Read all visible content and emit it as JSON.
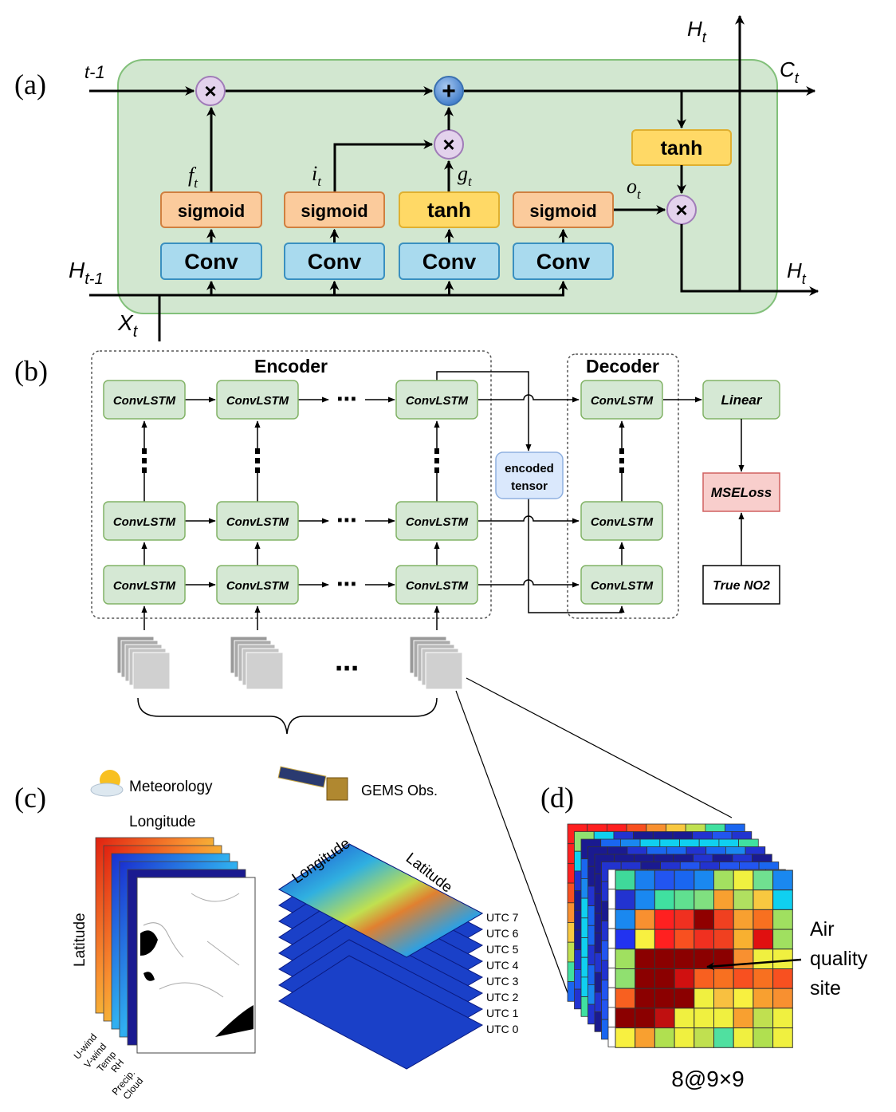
{
  "panel_a": {
    "label": "(a)",
    "c_prev": "t-1",
    "c_out": "C",
    "c_out_sub": "t",
    "h_top": "H",
    "h_top_sub": "t",
    "h_out": "H",
    "h_out_sub": "t",
    "h_prev": "H",
    "h_prev_sub": "t-1",
    "x_in": "X",
    "x_in_sub": "t",
    "gates": [
      {
        "act": "sigmoid",
        "conv": "Conv",
        "symbol": "f",
        "sub": "t"
      },
      {
        "act": "sigmoid",
        "conv": "Conv",
        "symbol": "i",
        "sub": "t"
      },
      {
        "act": "tanh",
        "conv": "Conv",
        "symbol": "g",
        "sub": "t"
      },
      {
        "act": "sigmoid",
        "conv": "Conv",
        "symbol": "o",
        "sub": "t"
      }
    ],
    "tanh_out": "tanh",
    "multiply_symbol": "×",
    "add_symbol": "+"
  },
  "panel_b": {
    "label": "(b)",
    "encoder_title": "Encoder",
    "decoder_title": "Decoder",
    "cell_label": "ConvLSTM",
    "encoded": [
      "encoded",
      "tensor"
    ],
    "linear": "Linear",
    "loss": "MSELoss",
    "target": "True NO2",
    "ellipsis": "⋯"
  },
  "panel_c": {
    "label": "(c)",
    "meteorology": "Meteorology",
    "gems": "GEMS Obs.",
    "longitude": "Longitude",
    "latitude": "Latitude",
    "variables": [
      "U-wind",
      "V-wind",
      "Temp",
      "RH",
      "Precip.",
      "Cloud"
    ],
    "utc_labels": [
      "UTC 7",
      "UTC 6",
      "UTC 5",
      "UTC 4",
      "UTC 3",
      "UTC 2",
      "UTC 1",
      "UTC 0"
    ]
  },
  "panel_d": {
    "label": "(d)",
    "annotation": [
      "Air",
      "quality",
      "site"
    ],
    "shape_label": "8@9×9",
    "front_grid": [
      [
        "#3fd99a",
        "#1a7ff0",
        "#2255f0",
        "#1a66f0",
        "#1a88f0",
        "#a3e060",
        "#f0f040",
        "#70e090",
        "#1a88f0"
      ],
      [
        "#2233d0",
        "#1a88f0",
        "#40e0a0",
        "#60e090",
        "#80e080",
        "#f8a030",
        "#b0e060",
        "#f8c840",
        "#10d0f0"
      ],
      [
        "#1a88f0",
        "#f89030",
        "#ff2020",
        "#f03020",
        "#900000",
        "#f04020",
        "#f8a030",
        "#f87020",
        "#a0e060"
      ],
      [
        "#2233f0",
        "#f8f040",
        "#ff2020",
        "#f85020",
        "#f03020",
        "#f04020",
        "#f8b030",
        "#e01010",
        "#a0e060"
      ],
      [
        "#a0e060",
        "#8b0000",
        "#8b0000",
        "#8b0000",
        "#8b0000",
        "#8b0000",
        "#f89030",
        "#f0f040",
        "#f0f040"
      ],
      [
        "#90e070",
        "#8b0000",
        "#8b0000",
        "#d01010",
        "#f86020",
        "#f87020",
        "#f85020",
        "#f87020",
        "#f85020"
      ],
      [
        "#f86020",
        "#8b0000",
        "#8b0000",
        "#8b0000",
        "#f0f040",
        "#f8c040",
        "#f8f040",
        "#f8a030",
        "#f89030"
      ],
      [
        "#8b0000",
        "#8b0000",
        "#c01010",
        "#f0f040",
        "#f0f040",
        "#f0f040",
        "#f8a030",
        "#c0e050",
        "#f0f040"
      ],
      [
        "#f8f040",
        "#f8a030",
        "#b0e050",
        "#f0f040",
        "#c0e050",
        "#50e0a0",
        "#f0f040",
        "#b0e050",
        "#f0f040"
      ]
    ],
    "back_layers": [
      [
        "#ff2020",
        "#ff2020",
        "#ff2020",
        "#f85020",
        "#f89030",
        "#f8c840",
        "#c0e050",
        "#40e0a0",
        "#1a66f0"
      ],
      [
        "#90e070",
        "#10d0f0",
        "#2233d0",
        "#1a1a90",
        "#1a1a90",
        "#1a1a90",
        "#2233d0",
        "#2255f0",
        "#2233d0"
      ],
      [
        "#1a1a90",
        "#1a66f0",
        "#1a88f0",
        "#10d0f0",
        "#10d0f0",
        "#10d0f0",
        "#10d0f0",
        "#10d0f0",
        "#40e0a0"
      ],
      [
        "#1a1a90",
        "#1a1a90",
        "#2233d0",
        "#1a66f0",
        "#1a66f0",
        "#2233d0",
        "#1a66f0",
        "#1a88f0",
        "#2233d0"
      ],
      [
        "#1a1a90",
        "#1a1a90",
        "#1a1a90",
        "#1a1a90",
        "#1a1a90",
        "#2233d0",
        "#1a1a90",
        "#2233d0",
        "#1a1a90"
      ],
      [
        "#2233d0",
        "#2233d0",
        "#1a1a90",
        "#2233d0",
        "#2255f0",
        "#2233d0",
        "#2255f0",
        "#2255f0",
        "#1a66f0"
      ],
      [
        "#ffffff",
        "#ffffff",
        "#ffffff",
        "#ffffff",
        "#ffffff",
        "#ffffff",
        "#ffffff",
        "#ffffff",
        "#ffffff"
      ]
    ]
  },
  "colors": {
    "cell_bg": "#d2e7d0",
    "conv": "#a9daee",
    "sigmoid": "#fbcb9c",
    "tanh": "#ffd966",
    "convlstm": "#d5e8d4",
    "loss": "#f8cecc",
    "encoded": "#dae8fc"
  }
}
